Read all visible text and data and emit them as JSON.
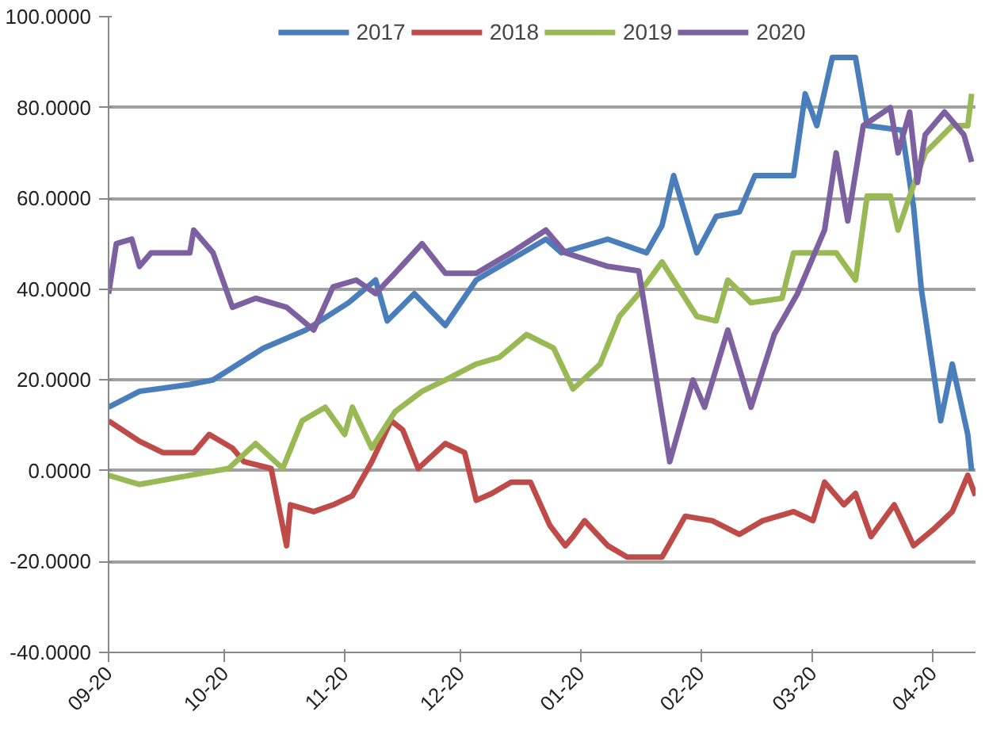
{
  "chart_data": {
    "type": "line",
    "xlim": [
      "2019-09-20",
      "2020-05-01"
    ],
    "xticks": [
      {
        "value": "2019-09-20",
        "label": "09-20"
      },
      {
        "value": "2019-10-20",
        "label": "10-20"
      },
      {
        "value": "2019-11-20",
        "label": "11-20"
      },
      {
        "value": "2019-12-20",
        "label": "12-20"
      },
      {
        "value": "2020-01-20",
        "label": "01-20"
      },
      {
        "value": "2020-02-20",
        "label": "02-20"
      },
      {
        "value": "2020-03-20",
        "label": "03-20"
      },
      {
        "value": "2020-04-20",
        "label": "04-20"
      }
    ],
    "ylim": [
      -40,
      100
    ],
    "yticks": [
      {
        "value": -40,
        "label": "-40.0000"
      },
      {
        "value": -20,
        "label": "-20.0000"
      },
      {
        "value": 0,
        "label": "0.0000"
      },
      {
        "value": 20,
        "label": "20.0000"
      },
      {
        "value": 40,
        "label": "40.0000"
      },
      {
        "value": 60,
        "label": "60.0000"
      },
      {
        "value": 80,
        "label": "80.0000"
      },
      {
        "value": 100,
        "label": "100.0000"
      }
    ],
    "grid": "y",
    "legend": "top",
    "marker": "none",
    "line_style": "solid",
    "series": [
      {
        "name": "2017",
        "color": "#4a7ebb",
        "x": [
          "2019-09-20",
          "2019-09-28",
          "2019-10-11",
          "2019-10-17",
          "2019-10-30",
          "2019-11-10",
          "2019-11-21",
          "2019-11-28",
          "2019-12-01",
          "2019-12-08",
          "2019-12-16",
          "2019-12-24",
          "2019-12-30",
          "2020-01-11",
          "2020-01-15",
          "2020-01-27",
          "2020-02-06",
          "2020-02-10",
          "2020-02-13",
          "2020-02-19",
          "2020-02-24",
          "2020-03-01",
          "2020-03-05",
          "2020-03-15",
          "2020-03-18",
          "2020-03-21",
          "2020-03-25",
          "2020-03-31",
          "2020-04-03",
          "2020-04-12",
          "2020-04-15",
          "2020-04-17",
          "2020-04-22",
          "2020-04-25",
          "2020-04-29",
          "2020-04-30"
        ],
        "values": [
          14,
          17.5,
          19,
          20,
          27,
          31,
          37,
          42,
          33,
          39,
          32,
          42,
          45,
          51,
          48,
          51,
          48,
          54,
          65,
          48,
          56,
          57,
          65,
          65,
          83,
          76,
          91,
          91,
          76,
          75,
          58,
          40,
          11,
          23.5,
          8,
          0
        ]
      },
      {
        "name": "2018",
        "color": "#be4b48",
        "x": [
          "2019-09-20",
          "2019-09-28",
          "2019-10-04",
          "2019-10-12",
          "2019-10-16",
          "2019-10-22",
          "2019-10-25",
          "2019-11-01",
          "2019-11-05",
          "2019-11-06",
          "2019-11-12",
          "2019-11-17",
          "2019-11-22",
          "2019-11-27",
          "2019-12-02",
          "2019-12-05",
          "2019-12-09",
          "2019-12-16",
          "2019-12-21",
          "2019-12-24",
          "2019-12-28",
          "2020-01-02",
          "2020-01-07",
          "2020-01-12",
          "2020-01-16",
          "2020-01-18",
          "2020-01-21",
          "2020-01-27",
          "2020-02-01",
          "2020-02-10",
          "2020-02-16",
          "2020-02-23",
          "2020-03-01",
          "2020-03-07",
          "2020-03-15",
          "2020-03-20",
          "2020-03-23",
          "2020-03-28",
          "2020-03-31",
          "2020-04-04",
          "2020-04-10",
          "2020-04-12",
          "2020-04-15",
          "2020-04-20",
          "2020-04-25",
          "2020-04-29",
          "2020-05-01"
        ],
        "values": [
          11,
          6.5,
          4,
          4,
          8,
          5,
          2,
          0.5,
          -16.5,
          -7.5,
          -9,
          -7.5,
          -5.5,
          2,
          11,
          9,
          0.5,
          6,
          4,
          -6.5,
          -5,
          -2.5,
          -2.5,
          -12,
          -16.5,
          -14.5,
          -11,
          -16.5,
          -19,
          -19,
          -10,
          -11,
          -14,
          -11,
          -9,
          -11,
          -2.5,
          -7.5,
          -5,
          -14.5,
          -7.5,
          -11,
          -16.5,
          -13,
          -9,
          -1,
          -5.5
        ]
      },
      {
        "name": "2019",
        "color": "#98b954",
        "x": [
          "2019-09-20",
          "2019-09-28",
          "2019-10-11",
          "2019-10-21",
          "2019-10-28",
          "2019-11-04",
          "2019-11-09",
          "2019-11-15",
          "2019-11-20",
          "2019-11-22",
          "2019-11-27",
          "2019-12-03",
          "2019-12-10",
          "2019-12-16",
          "2019-12-24",
          "2019-12-30",
          "2020-01-06",
          "2020-01-13",
          "2020-01-18",
          "2020-01-25",
          "2020-01-30",
          "2020-02-04",
          "2020-02-10",
          "2020-02-19",
          "2020-02-24",
          "2020-02-27",
          "2020-03-04",
          "2020-03-12",
          "2020-03-15",
          "2020-03-20",
          "2020-03-26",
          "2020-03-31",
          "2020-04-03",
          "2020-04-09",
          "2020-04-11",
          "2020-04-14",
          "2020-04-18",
          "2020-04-25",
          "2020-04-29",
          "2020-04-30"
        ],
        "values": [
          -1,
          -3,
          -1,
          0.5,
          6,
          0.5,
          11,
          14,
          8,
          14,
          5,
          13,
          17.5,
          20,
          23.5,
          25,
          30,
          27,
          18,
          23.5,
          34,
          39,
          46,
          34,
          33,
          42,
          37,
          38,
          48,
          48,
          48,
          42,
          60.5,
          60.5,
          53,
          60.5,
          70,
          76,
          76,
          83
        ]
      },
      {
        "name": "2020",
        "color": "#7d60a0",
        "x": [
          "2019-09-20",
          "2019-09-22",
          "2019-09-26",
          "2019-09-28",
          "2019-10-01",
          "2019-10-11",
          "2019-10-12",
          "2019-10-17",
          "2019-10-22",
          "2019-10-28",
          "2019-11-05",
          "2019-11-12",
          "2019-11-17",
          "2019-11-23",
          "2019-11-28",
          "2019-12-03",
          "2019-12-10",
          "2019-12-16",
          "2019-12-24",
          "2020-01-02",
          "2020-01-11",
          "2020-01-16",
          "2020-01-27",
          "2020-02-04",
          "2020-02-12",
          "2020-02-18",
          "2020-02-21",
          "2020-02-27",
          "2020-03-04",
          "2020-03-07",
          "2020-03-10",
          "2020-03-16",
          "2020-03-23",
          "2020-03-26",
          "2020-03-29",
          "2020-04-02",
          "2020-04-09",
          "2020-04-11",
          "2020-04-14",
          "2020-04-16",
          "2020-04-18",
          "2020-04-23",
          "2020-04-28",
          "2020-04-30"
        ],
        "values": [
          39,
          50,
          51,
          45,
          48,
          48,
          53,
          48,
          36,
          38,
          36,
          31,
          40.5,
          42,
          39,
          43.5,
          50,
          43.5,
          43.5,
          48,
          53,
          48,
          45,
          44,
          2,
          20,
          14,
          31,
          14,
          22,
          30,
          39,
          53,
          70,
          55,
          76,
          80,
          70,
          79,
          63.5,
          74,
          79,
          74,
          68
        ]
      }
    ]
  }
}
